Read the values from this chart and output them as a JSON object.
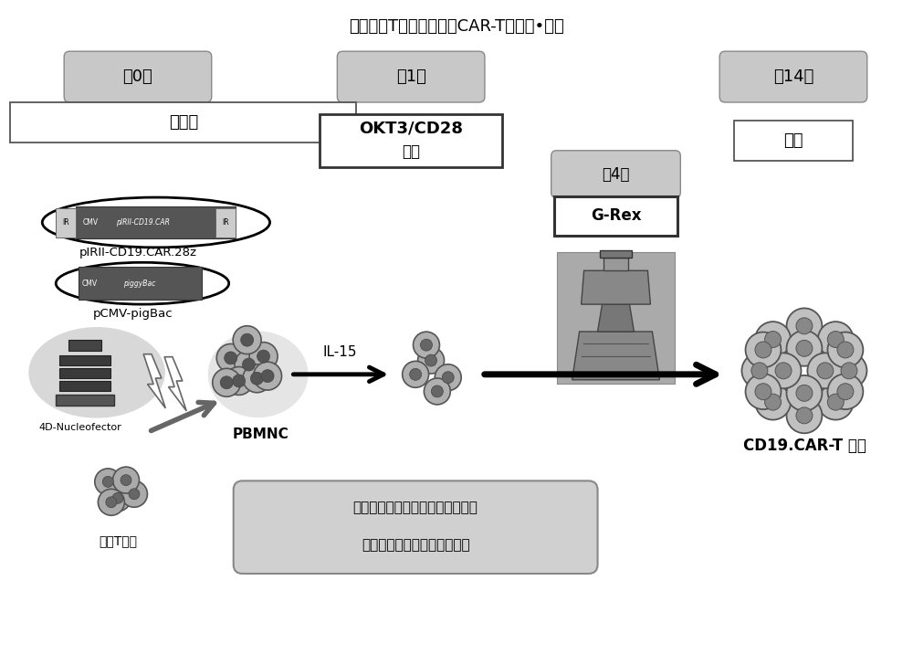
{
  "title": "基于活化T细胞添加法的CAR-T的制作•培养",
  "bg_color": "#ffffff",
  "day0_label": "第0天",
  "day1_label": "第1天",
  "day14_label": "第14天",
  "day4_label": "第4天",
  "step0_label": "核转染",
  "step1_label1": "OKT3/CD28",
  "step1_label2": "刺激",
  "step14_label": "回收",
  "grex_label": "G-Rex",
  "plasmid1_label": "pIRII-CD19.CAR.28z",
  "plasmid2_label": "pCMV-pigBac",
  "nucleofector_label": "4D-Nucleofector",
  "pbmnc_label": "PBMNC",
  "activated_label": "活化T细胞",
  "il15_label1": "IL-15",
  "il15_label2": "IL-15",
  "cart_label": "CD19.CAR-T 细胞",
  "bottom_text1": "通过进行共刺激、细胞因子分泌而",
  "bottom_text2": "保护受到损伤的基因导入细胞",
  "gray_box_fc": "#c8c8c8",
  "gray_box_ec": "#888888",
  "white_box_fc": "#ffffff",
  "dark_box_ec": "#333333"
}
